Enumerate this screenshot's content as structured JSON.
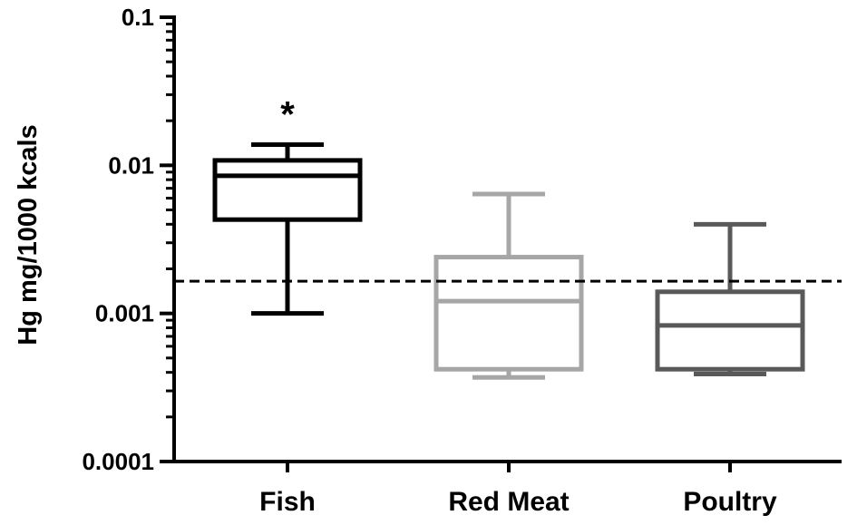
{
  "chart_data": {
    "type": "box",
    "title": "",
    "ylabel": "Hg mg/1000 kcals",
    "xlabel": "",
    "yscale": "log",
    "ylim": [
      0.0001,
      0.1
    ],
    "yticks": [
      {
        "value": 0.1,
        "label": "0.1"
      },
      {
        "value": 0.01,
        "label": "0.01"
      },
      {
        "value": 0.001,
        "label": "0.001"
      },
      {
        "value": 0.0001,
        "label": "0.0001"
      }
    ],
    "categories": [
      "Fish",
      "Red Meat",
      "Poultry"
    ],
    "boxes": [
      {
        "category": "Fish",
        "whisker_low": 0.001,
        "q1": 0.0043,
        "median": 0.0085,
        "q3": 0.0108,
        "whisker_high": 0.0138,
        "color": "#000000",
        "annotation": "*"
      },
      {
        "category": "Red Meat",
        "whisker_low": 0.00037,
        "q1": 0.00042,
        "median": 0.00121,
        "q3": 0.0024,
        "whisker_high": 0.0064,
        "color": "#a6a6a6",
        "annotation": ""
      },
      {
        "category": "Poultry",
        "whisker_low": 0.00039,
        "q1": 0.00042,
        "median": 0.00083,
        "q3": 0.0014,
        "whisker_high": 0.004,
        "color": "#595959",
        "annotation": ""
      }
    ],
    "reference_line": {
      "value": 0.00165,
      "style": "dashed",
      "color": "#000000"
    },
    "grid": false,
    "legend": "none"
  }
}
